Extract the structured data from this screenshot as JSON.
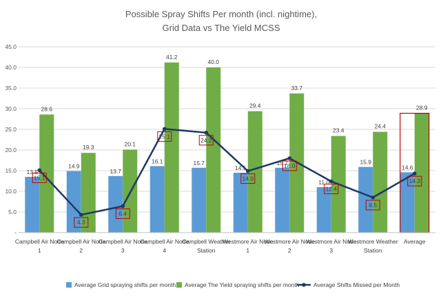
{
  "chart_data": {
    "type": "bar",
    "title_lines": [
      "Possible Spray Shifts Per month (incl. nightime),",
      "Grid Data vs The Yield MCSS"
    ],
    "categories": [
      [
        "Campbell Air Node",
        "1"
      ],
      [
        "Campbell Air Node",
        "2"
      ],
      [
        "Campbell Air Node",
        "3"
      ],
      [
        "Campbell Air Node",
        "4"
      ],
      [
        "Campbell Weather",
        "Station"
      ],
      [
        "Westmore Air Node",
        "1"
      ],
      [
        "Westmore Air Node",
        "2"
      ],
      [
        "Westmore Air Node",
        "3"
      ],
      [
        "Westmore Weather",
        "Station"
      ],
      [
        "Average",
        ""
      ]
    ],
    "ylim": [
      0,
      45
    ],
    "yticks": [
      "-",
      "5.0",
      "10.0",
      "15.0",
      "20.0",
      "25.0",
      "30.0",
      "35.0",
      "40.0",
      "45.0"
    ],
    "series": [
      {
        "name": "Average Grid spraying shifts per month",
        "kind": "bar",
        "color": "#5B9BD5",
        "values": [
          13.5,
          14.9,
          13.7,
          16.1,
          15.7,
          14.5,
          15.7,
          11.0,
          15.9,
          14.6
        ],
        "labels": [
          "13.5",
          "14.9",
          "13.7",
          "16.1",
          "15.7",
          "14.5",
          "15.7",
          "11.0",
          "15.9",
          "14.6"
        ]
      },
      {
        "name": "Average The Yield spraying shifts per month",
        "kind": "bar",
        "color": "#70AD47",
        "values": [
          28.6,
          19.3,
          20.1,
          41.2,
          40.0,
          29.4,
          33.7,
          23.4,
          24.4,
          28.9
        ],
        "labels": [
          "28.6",
          "19.3",
          "20.1",
          "41.2",
          "40.0",
          "29.4",
          "33.7",
          "23.4",
          "24.4",
          "28.9"
        ]
      },
      {
        "name": "Average Shifts Missed per Month",
        "kind": "line",
        "color": "#1F3864",
        "values": [
          15.1,
          4.3,
          6.4,
          25.1,
          24.2,
          14.9,
          18.0,
          12.4,
          8.5,
          14.3
        ],
        "labels": [
          "15.1",
          "4.3",
          "6.4",
          "25.1",
          "24.2",
          "14.9",
          "18.0",
          "12.4",
          "8.5",
          "14.3"
        ]
      }
    ],
    "highlight_color": "#C00000",
    "gridlines": true,
    "legend_position": "bottom"
  }
}
